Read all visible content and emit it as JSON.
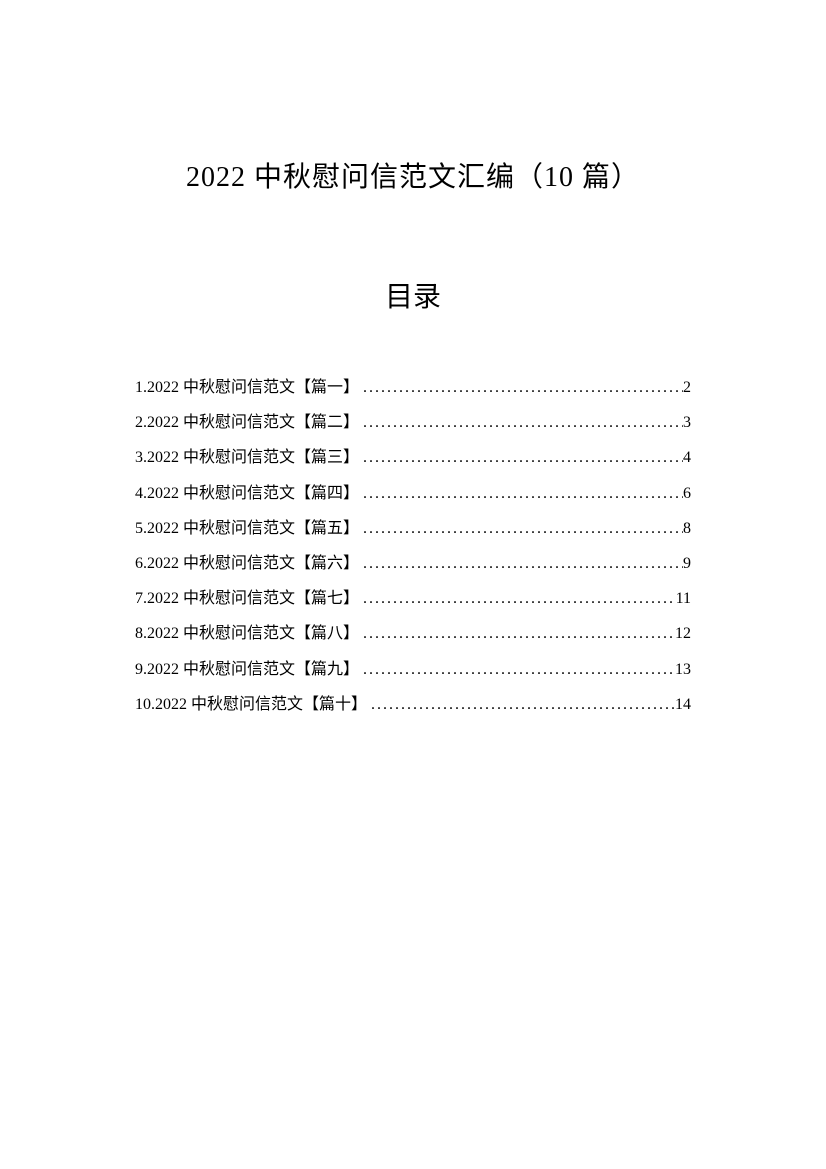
{
  "document": {
    "main_title": "2022 中秋慰问信范文汇编（10 篇）",
    "toc_title": "目录",
    "toc_items": [
      {
        "label": "1.2022 中秋慰问信范文【篇一】",
        "page": "2"
      },
      {
        "label": "2.2022 中秋慰问信范文【篇二】",
        "page": "3"
      },
      {
        "label": "3.2022 中秋慰问信范文【篇三】",
        "page": "4"
      },
      {
        "label": "4.2022 中秋慰问信范文【篇四】",
        "page": "6"
      },
      {
        "label": "5.2022 中秋慰问信范文【篇五】",
        "page": "8"
      },
      {
        "label": "6.2022 中秋慰问信范文【篇六】",
        "page": "9"
      },
      {
        "label": "7.2022 中秋慰问信范文【篇七】",
        "page": "11"
      },
      {
        "label": "8.2022 中秋慰问信范文【篇八】",
        "page": "12"
      },
      {
        "label": "9.2022 中秋慰问信范文【篇九】",
        "page": "13"
      },
      {
        "label": "10.2022 中秋慰问信范文【篇十】",
        "page": "14"
      }
    ]
  },
  "colors": {
    "background": "#ffffff",
    "text": "#000000"
  },
  "typography": {
    "title_fontsize": 28,
    "toc_title_fontsize": 28,
    "body_fontsize": 16,
    "font_family": "SimSun"
  }
}
